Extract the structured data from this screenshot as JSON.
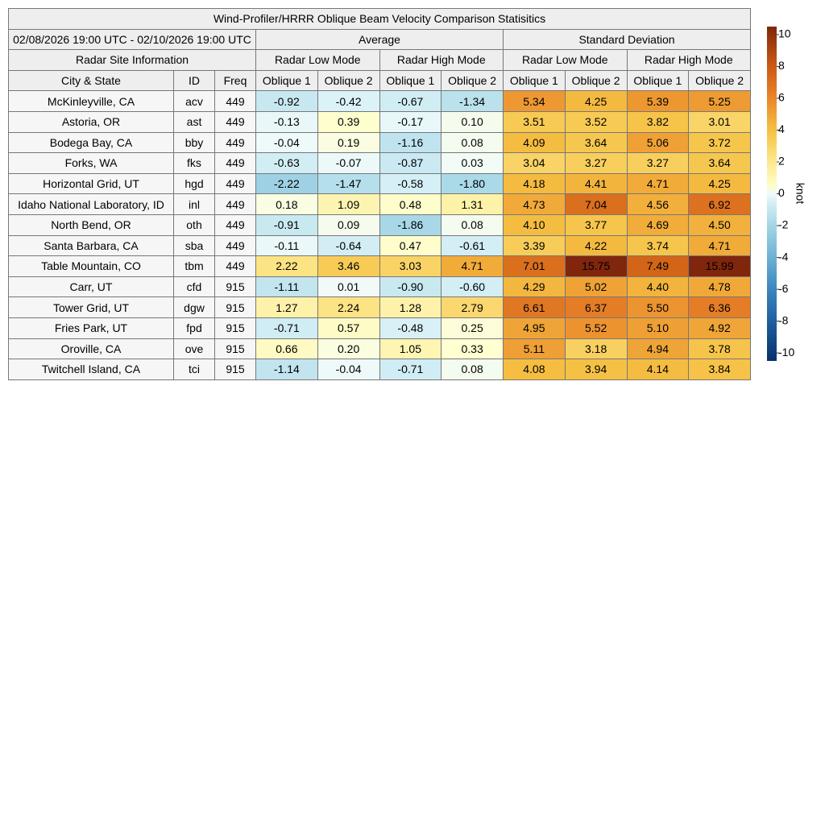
{
  "title": "Wind-Profiler/HRRR Oblique Beam Velocity Comparison Statisitics",
  "date_range": "02/08/2026 19:00 UTC - 02/10/2026 19:00 UTC",
  "groups": [
    "Average",
    "Standard Deviation"
  ],
  "site_info": "Radar Site Information",
  "modes": [
    "Radar Low Mode",
    "Radar High Mode",
    "Radar Low Mode",
    "Radar High Mode"
  ],
  "columns": [
    "City & State",
    "ID",
    "Freq",
    "Oblique 1",
    "Oblique 2",
    "Oblique 1",
    "Oblique 2",
    "Oblique 1",
    "Oblique 2",
    "Oblique 1",
    "Oblique 2"
  ],
  "rows": [
    [
      "McKinleyville, CA",
      "acv",
      "449",
      "-0.92",
      "-0.42",
      "-0.67",
      "-1.34",
      "5.34",
      "4.25",
      "5.39",
      "5.25"
    ],
    [
      "Astoria, OR",
      "ast",
      "449",
      "-0.13",
      "0.39",
      "-0.17",
      "0.10",
      "3.51",
      "3.52",
      "3.82",
      "3.01"
    ],
    [
      "Bodega Bay, CA",
      "bby",
      "449",
      "-0.04",
      "0.19",
      "-1.16",
      "0.08",
      "4.09",
      "3.64",
      "5.06",
      "3.72"
    ],
    [
      "Forks, WA",
      "fks",
      "449",
      "-0.63",
      "-0.07",
      "-0.87",
      "0.03",
      "3.04",
      "3.27",
      "3.27",
      "3.64"
    ],
    [
      "Horizontal Grid, UT",
      "hgd",
      "449",
      "-2.22",
      "-1.47",
      "-0.58",
      "-1.80",
      "4.18",
      "4.41",
      "4.71",
      "4.25"
    ],
    [
      "Idaho National Laboratory, ID",
      "inl",
      "449",
      "0.18",
      "1.09",
      "0.48",
      "1.31",
      "4.73",
      "7.04",
      "4.56",
      "6.92"
    ],
    [
      "North Bend, OR",
      "oth",
      "449",
      "-0.91",
      "0.09",
      "-1.86",
      "0.08",
      "4.10",
      "3.77",
      "4.69",
      "4.50"
    ],
    [
      "Santa Barbara, CA",
      "sba",
      "449",
      "-0.11",
      "-0.64",
      "0.47",
      "-0.61",
      "3.39",
      "4.22",
      "3.74",
      "4.71"
    ],
    [
      "Table Mountain, CO",
      "tbm",
      "449",
      "2.22",
      "3.46",
      "3.03",
      "4.71",
      "7.01",
      "15.75",
      "7.49",
      "15.99"
    ],
    [
      "Carr, UT",
      "cfd",
      "915",
      "-1.11",
      "0.01",
      "-0.90",
      "-0.60",
      "4.29",
      "5.02",
      "4.40",
      "4.78"
    ],
    [
      "Tower Grid, UT",
      "dgw",
      "915",
      "1.27",
      "2.24",
      "1.28",
      "2.79",
      "6.61",
      "6.37",
      "5.50",
      "6.36"
    ],
    [
      "Fries Park, UT",
      "fpd",
      "915",
      "-0.71",
      "0.57",
      "-0.48",
      "0.25",
      "4.95",
      "5.52",
      "5.10",
      "4.92"
    ],
    [
      "Oroville, CA",
      "ove",
      "915",
      "0.66",
      "0.20",
      "1.05",
      "0.33",
      "5.11",
      "3.18",
      "4.94",
      "3.78"
    ],
    [
      "Twitchell Island, CA",
      "tci",
      "915",
      "-1.14",
      "-0.04",
      "-0.71",
      "0.08",
      "4.08",
      "3.94",
      "4.14",
      "3.84"
    ]
  ],
  "colorbar": {
    "label": "knot",
    "lim": [
      -10.5,
      10.5
    ],
    "ticks": [
      -10,
      -8,
      -6,
      -4,
      -2,
      0,
      2,
      4,
      6,
      8,
      10
    ]
  }
}
